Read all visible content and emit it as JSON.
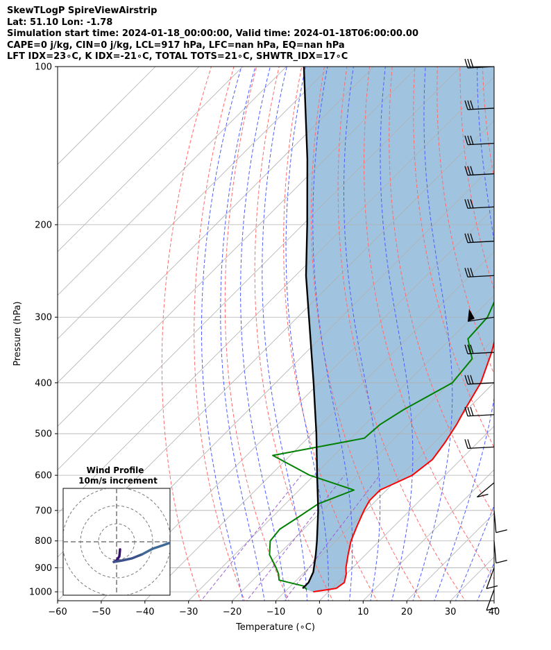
{
  "header": {
    "line1": "SkewTLogP SpireViewAirstrip",
    "line2": "Lat: 51.10   Lon: -1.78",
    "line3": "Simulation start time: 2024-01-18_00:00:00, Valid time: 2024-01-18T06:00:00.00",
    "line4": "CAPE=0 j/kg, CIN=0 j/kg, LCL=917 hPa, LFC=nan hPa, EQ=nan hPa",
    "line5": "LFT IDX=23∘C, K IDX=-21∘C, TOTAL TOTS=21∘C, SHWTR_IDX=17∘C"
  },
  "chart_data": {
    "type": "line",
    "chart_kind": "skew-T log-P diagram",
    "xlabel": "Temperature (∘C)",
    "ylabel": "Pressure (hPa)",
    "xlim": [
      -60,
      40
    ],
    "ylim": [
      1040,
      100
    ],
    "y_scale": "log",
    "grid": true,
    "x_ticks": [
      -60,
      -50,
      -40,
      -30,
      -20,
      -10,
      0,
      10,
      20,
      30,
      40
    ],
    "y_ticks": [
      100,
      200,
      300,
      400,
      500,
      600,
      700,
      800,
      900,
      1000
    ],
    "colors": {
      "temperature": "#ff0000",
      "dewpoint": "#008000",
      "parcel": "#000000",
      "cin_fill": "#a0c4df",
      "dry_adiabats": "#ff6b6b",
      "moist_adiabats": "#4d5cff",
      "mixing_ratio": "#9a5fd4",
      "isotherms": "#b0b0b0"
    },
    "series": [
      {
        "name": "Temperature",
        "points": [
          [
            1000,
            -3.5
          ],
          [
            985,
            1.0
          ],
          [
            960,
            1.5
          ],
          [
            925,
            0.0
          ],
          [
            900,
            -1.5
          ],
          [
            850,
            -4.0
          ],
          [
            800,
            -6.5
          ],
          [
            750,
            -8.5
          ],
          [
            700,
            -10.5
          ],
          [
            670,
            -11.5
          ],
          [
            640,
            -11.5
          ],
          [
            620,
            -9.5
          ],
          [
            600,
            -7.5
          ],
          [
            560,
            -6.5
          ],
          [
            520,
            -7.5
          ],
          [
            480,
            -9.0
          ],
          [
            450,
            -10.5
          ],
          [
            400,
            -13.0
          ],
          [
            350,
            -17.5
          ],
          [
            320,
            -21.0
          ],
          [
            290,
            -25.0
          ],
          [
            270,
            -28.0
          ],
          [
            250,
            -29.5
          ],
          [
            230,
            -28.0
          ],
          [
            200,
            -25.0
          ],
          [
            180,
            -23.5
          ],
          [
            160,
            -23.0
          ],
          [
            140,
            -24.5
          ],
          [
            120,
            -27.5
          ],
          [
            110,
            -30.0
          ],
          [
            100,
            -32.0
          ]
        ]
      },
      {
        "name": "Dewpoint",
        "points": [
          [
            990,
            -5.5
          ],
          [
            975,
            -7.0
          ],
          [
            950,
            -14.0
          ],
          [
            925,
            -15.5
          ],
          [
            900,
            -17.5
          ],
          [
            850,
            -22.0
          ],
          [
            800,
            -25.0
          ],
          [
            760,
            -25.5
          ],
          [
            720,
            -24.0
          ],
          [
            680,
            -22.5
          ],
          [
            640,
            -17.5
          ],
          [
            600,
            -31.0
          ],
          [
            550,
            -44.0
          ],
          [
            510,
            -27.0
          ],
          [
            480,
            -26.5
          ],
          [
            450,
            -24.5
          ],
          [
            400,
            -19.5
          ],
          [
            360,
            -20.5
          ],
          [
            330,
            -26.0
          ],
          [
            300,
            -26.5
          ],
          [
            280,
            -28.5
          ],
          [
            240,
            -31.0
          ],
          [
            220,
            -33.0
          ],
          [
            205,
            -34.5
          ],
          [
            185,
            -41.0
          ],
          [
            170,
            -43.5
          ],
          [
            150,
            -44.0
          ],
          [
            130,
            -45.0
          ],
          [
            110,
            -47.0
          ],
          [
            100,
            -48.0
          ]
        ]
      },
      {
        "name": "Parcel",
        "points": [
          [
            985,
            -6.7
          ],
          [
            960,
            -6.7
          ],
          [
            917,
            -8.0
          ],
          [
            850,
            -11.4
          ],
          [
            800,
            -14.3
          ],
          [
            700,
            -21.0
          ],
          [
            600,
            -29.3
          ],
          [
            500,
            -39.0
          ],
          [
            400,
            -51.3
          ],
          [
            300,
            -67.4
          ],
          [
            250,
            -77.6
          ],
          [
            200,
            -89.0
          ],
          [
            150,
            -104.0
          ],
          [
            100,
            -126.0
          ]
        ]
      }
    ],
    "wind_barbs": [
      {
        "pressure": 100
      },
      {
        "pressure": 120
      },
      {
        "pressure": 140
      },
      {
        "pressure": 160
      },
      {
        "pressure": 185
      },
      {
        "pressure": 215
      },
      {
        "pressure": 250
      },
      {
        "pressure": 300
      },
      {
        "pressure": 350
      },
      {
        "pressure": 400
      },
      {
        "pressure": 460
      },
      {
        "pressure": 530
      },
      {
        "pressure": 620
      },
      {
        "pressure": 700
      },
      {
        "pressure": 800
      },
      {
        "pressure": 900
      },
      {
        "pressure": 990
      }
    ],
    "inset": {
      "title": "Wind Profile",
      "subtitle": "10m/s increment",
      "hodograph_line_colors": [
        "#3b0f70",
        "#3b528b",
        "#3f6a96"
      ]
    }
  }
}
